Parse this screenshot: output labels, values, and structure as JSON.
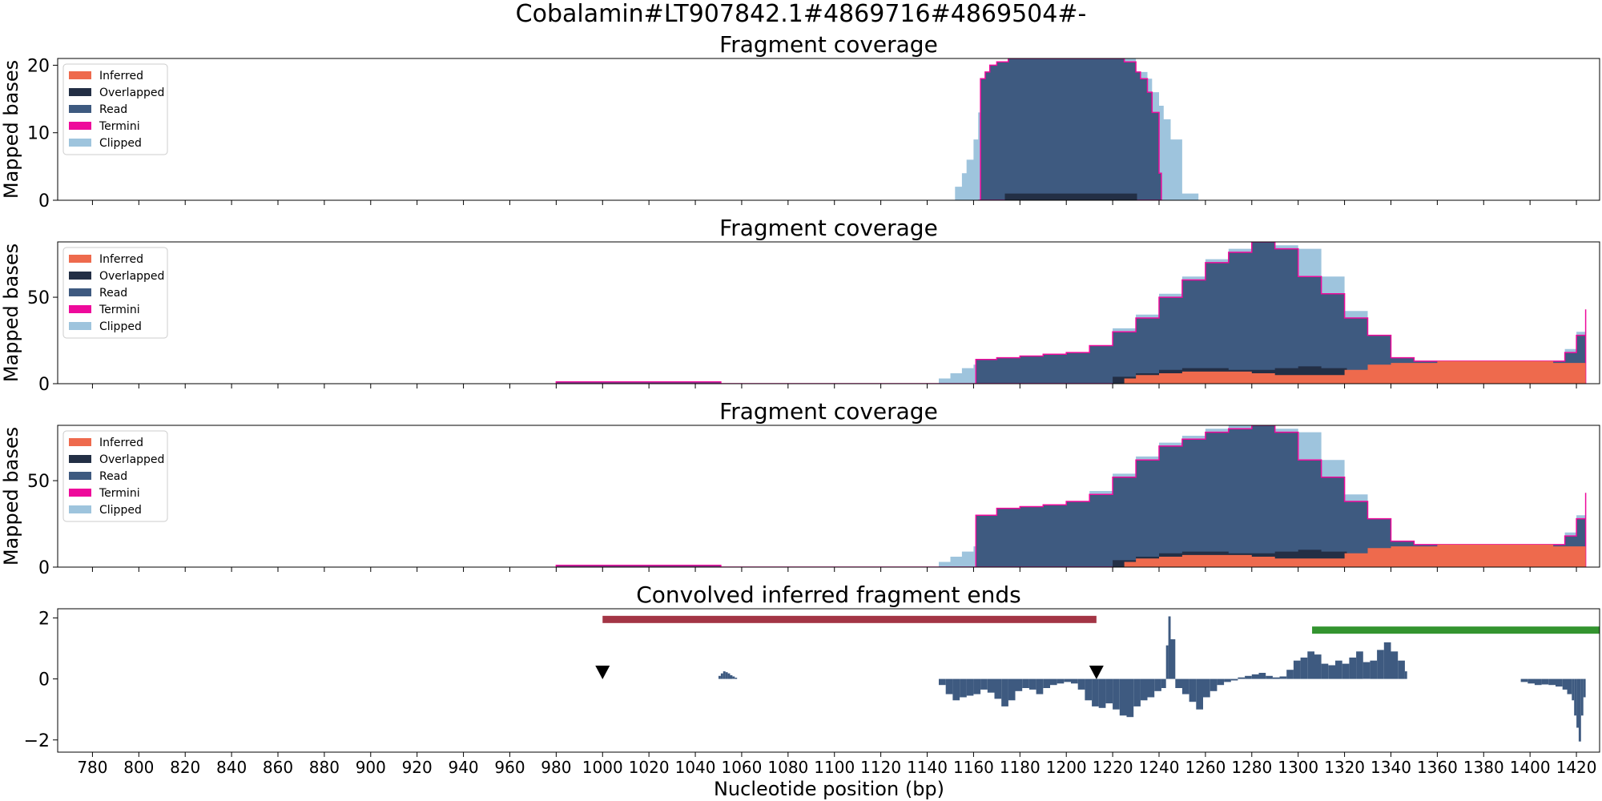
{
  "figure": {
    "suptitle": "Cobalamin#LT907842.1#4869716#4869504#-",
    "xlabel": "Nucleotide position (bp)",
    "xlim": [
      765,
      1430
    ],
    "xticks": [
      780,
      800,
      820,
      840,
      860,
      880,
      900,
      920,
      940,
      960,
      980,
      1000,
      1020,
      1040,
      1060,
      1080,
      1100,
      1120,
      1140,
      1160,
      1180,
      1200,
      1220,
      1240,
      1260,
      1280,
      1300,
      1320,
      1340,
      1360,
      1380,
      1400,
      1420
    ],
    "colors": {
      "inferred": "#ee6a4d",
      "overlapped": "#232f45",
      "read": "#3e5a80",
      "termini": "#ee0a9b",
      "clipped": "#9ec4dd",
      "bar_red": "#a33545",
      "bar_green": "#33942f",
      "marker": "#000000"
    },
    "legend_items": [
      "Inferred",
      "Overlapped",
      "Read",
      "Termini",
      "Clipped"
    ],
    "legend_keys": [
      "inferred",
      "overlapped",
      "read",
      "termini",
      "clipped"
    ]
  },
  "chart_data": [
    {
      "type": "area",
      "title": "Fragment coverage",
      "ylabel": "Mapped bases",
      "ylim": [
        0,
        21
      ],
      "yticks": [
        0,
        10,
        20
      ],
      "legend": "top-left",
      "series": [
        {
          "name": "Clipped",
          "x": [
            1150,
            1152,
            1155,
            1157,
            1160,
            1162,
            1163,
            1170,
            1172,
            1175,
            1180,
            1185,
            1190,
            1200,
            1210,
            1220,
            1230,
            1235,
            1237,
            1240,
            1242,
            1245,
            1250,
            1256,
            1257
          ],
          "values": [
            0,
            2,
            4,
            6,
            9,
            13,
            18,
            19,
            20,
            20.5,
            21,
            21,
            21,
            21,
            21,
            21,
            19,
            18,
            16,
            14,
            12,
            9,
            1,
            1,
            0
          ]
        },
        {
          "name": "Read",
          "x": [
            1162,
            1163,
            1165,
            1167,
            1170,
            1175,
            1180,
            1185,
            1190,
            1200,
            1210,
            1220,
            1225,
            1230,
            1232,
            1235,
            1237,
            1240,
            1241
          ],
          "values": [
            0,
            18,
            19,
            20,
            20.5,
            21,
            21,
            21,
            21,
            21,
            21,
            21,
            20.5,
            19,
            18,
            16,
            13,
            4,
            0
          ]
        },
        {
          "name": "Overlapped",
          "x": [
            1173,
            1173.5,
            1230,
            1230.5
          ],
          "values": [
            0,
            1,
            1,
            0
          ]
        }
      ]
    },
    {
      "type": "area",
      "title": "Fragment coverage",
      "ylabel": "Mapped bases",
      "ylim": [
        0,
        82
      ],
      "yticks": [
        0,
        50
      ],
      "legend": "top-left",
      "series": [
        {
          "name": "Clipped",
          "x": [
            970,
            980,
            1000,
            1020,
            1040,
            1050,
            1051,
            1140,
            1145,
            1150,
            1155,
            1160,
            1165,
            1170,
            1180,
            1190,
            1200,
            1210,
            1220,
            1230,
            1240,
            1250,
            1260,
            1270,
            1280,
            1290,
            1300,
            1310,
            1320,
            1330,
            1340,
            1350,
            1360,
            1370,
            1380,
            1390,
            1400,
            1410,
            1415,
            1420,
            1424
          ],
          "values": [
            0,
            1,
            1,
            1,
            1,
            1,
            0,
            0,
            3,
            6,
            9,
            11,
            12,
            14,
            15,
            17,
            18,
            22,
            32,
            40,
            52,
            62,
            72,
            78,
            81,
            80,
            78,
            62,
            42,
            24,
            13,
            13,
            13,
            13,
            13,
            13,
            13,
            13,
            20,
            30,
            43
          ]
        },
        {
          "name": "Read",
          "x": [
            980,
            1000,
            1020,
            1040,
            1050,
            1051,
            1160,
            1161,
            1170,
            1180,
            1190,
            1200,
            1210,
            1220,
            1230,
            1240,
            1250,
            1260,
            1270,
            1280,
            1290,
            1300,
            1310,
            1320,
            1330,
            1340,
            1350,
            1360,
            1370,
            1380,
            1390,
            1400,
            1410,
            1415,
            1420,
            1424
          ],
          "values": [
            1,
            1,
            1,
            1,
            1,
            0,
            0,
            14,
            15,
            16,
            17,
            18,
            22,
            30,
            38,
            50,
            60,
            70,
            76,
            82,
            78,
            62,
            52,
            38,
            28,
            15,
            13,
            13,
            13,
            13,
            13,
            13,
            13,
            18,
            28,
            43
          ]
        },
        {
          "name": "Overlapped",
          "x": [
            1220,
            1230,
            1240,
            1250,
            1260,
            1270,
            1280,
            1290,
            1300,
            1310,
            1320,
            1321
          ],
          "values": [
            4,
            6,
            8,
            9,
            9,
            8,
            8,
            9,
            10,
            9,
            9,
            0
          ]
        },
        {
          "name": "Inferred",
          "x": [
            1220,
            1225,
            1230,
            1240,
            1250,
            1260,
            1270,
            1280,
            1290,
            1300,
            1310,
            1320,
            1330,
            1340,
            1350,
            1360,
            1370,
            1380,
            1390,
            1400,
            1410,
            1420,
            1424
          ],
          "values": [
            0,
            3,
            5,
            6,
            7,
            7,
            7,
            6,
            5,
            5,
            5,
            8,
            11,
            12,
            12,
            13,
            13,
            13,
            13,
            13,
            12,
            12,
            12
          ]
        }
      ]
    },
    {
      "type": "area",
      "title": "Fragment coverage",
      "ylabel": "Mapped bases",
      "ylim": [
        0,
        82
      ],
      "yticks": [
        0,
        50
      ],
      "legend": "top-left",
      "series": [
        {
          "name": "Clipped",
          "x": [
            970,
            980,
            1000,
            1020,
            1040,
            1050,
            1051,
            1140,
            1145,
            1150,
            1155,
            1160,
            1165,
            1170,
            1180,
            1190,
            1200,
            1210,
            1220,
            1230,
            1240,
            1250,
            1260,
            1270,
            1280,
            1290,
            1300,
            1310,
            1320,
            1330,
            1340,
            1350,
            1360,
            1370,
            1380,
            1390,
            1400,
            1410,
            1415,
            1420,
            1424
          ],
          "values": [
            0,
            1,
            1,
            1,
            1,
            1,
            0,
            0,
            3,
            6,
            9,
            12,
            18,
            28,
            35,
            36,
            38,
            44,
            54,
            64,
            72,
            76,
            80,
            82,
            82,
            80,
            78,
            62,
            42,
            24,
            13,
            13,
            13,
            13,
            13,
            13,
            13,
            13,
            20,
            30,
            43
          ]
        },
        {
          "name": "Read",
          "x": [
            980,
            1000,
            1020,
            1040,
            1050,
            1051,
            1160,
            1161,
            1170,
            1180,
            1190,
            1200,
            1210,
            1220,
            1230,
            1240,
            1250,
            1260,
            1270,
            1280,
            1290,
            1300,
            1310,
            1320,
            1330,
            1340,
            1350,
            1360,
            1370,
            1380,
            1390,
            1400,
            1410,
            1415,
            1420,
            1424
          ],
          "values": [
            1,
            1,
            1,
            1,
            1,
            0,
            0,
            30,
            34,
            35,
            36,
            38,
            42,
            52,
            62,
            70,
            74,
            78,
            80,
            82,
            78,
            62,
            52,
            38,
            28,
            15,
            13,
            13,
            13,
            13,
            13,
            13,
            13,
            18,
            28,
            43
          ]
        },
        {
          "name": "Overlapped",
          "x": [
            1220,
            1230,
            1240,
            1250,
            1260,
            1270,
            1280,
            1290,
            1300,
            1310,
            1320,
            1321
          ],
          "values": [
            4,
            6,
            8,
            9,
            9,
            8,
            8,
            9,
            10,
            9,
            9,
            0
          ]
        },
        {
          "name": "Inferred",
          "x": [
            1220,
            1225,
            1230,
            1240,
            1250,
            1260,
            1270,
            1280,
            1290,
            1300,
            1310,
            1320,
            1330,
            1340,
            1350,
            1360,
            1370,
            1380,
            1390,
            1400,
            1410,
            1420,
            1424
          ],
          "values": [
            0,
            3,
            5,
            6,
            7,
            7,
            7,
            6,
            5,
            5,
            5,
            8,
            11,
            12,
            12,
            13,
            13,
            13,
            13,
            13,
            12,
            12,
            12
          ]
        }
      ]
    },
    {
      "type": "bar",
      "title": "Convolved inferred fragment ends",
      "ylim": [
        -2.4,
        2.3
      ],
      "yticks": [
        -2,
        0,
        2
      ],
      "series": [
        {
          "name": "",
          "x": [
            1050,
            1051,
            1052,
            1053,
            1054,
            1055,
            1056,
            1057
          ],
          "values": [
            0.1,
            0.18,
            0.25,
            0.22,
            0.18,
            0.12,
            0.08,
            0.04
          ]
        },
        {
          "name": "",
          "x": [
            1145,
            1148,
            1151,
            1154,
            1157,
            1160,
            1163,
            1166,
            1169,
            1172,
            1175,
            1178,
            1181,
            1184,
            1187,
            1190,
            1193,
            1196,
            1199,
            1202,
            1205,
            1208,
            1211,
            1214,
            1217,
            1220,
            1223,
            1226,
            1229,
            1232,
            1235,
            1238,
            1241,
            1243,
            1244,
            1245,
            1247,
            1250,
            1253,
            1256,
            1259,
            1262,
            1265,
            1268,
            1271,
            1274,
            1277,
            1280,
            1283,
            1286,
            1289,
            1292,
            1295,
            1298,
            1301,
            1304,
            1307,
            1310,
            1313,
            1316,
            1319,
            1322,
            1325,
            1328,
            1331,
            1334,
            1337,
            1340,
            1343,
            1346
          ],
          "values": [
            -0.2,
            -0.5,
            -0.7,
            -0.6,
            -0.55,
            -0.5,
            -0.35,
            -0.45,
            -0.65,
            -0.9,
            -0.7,
            -0.4,
            -0.3,
            -0.35,
            -0.5,
            -0.3,
            -0.2,
            -0.15,
            -0.1,
            -0.15,
            -0.35,
            -0.7,
            -0.9,
            -0.95,
            -0.8,
            -1.0,
            -1.2,
            -1.25,
            -0.9,
            -0.7,
            -0.6,
            -0.4,
            -0.3,
            1.1,
            2.05,
            1.3,
            -0.3,
            -0.5,
            -0.75,
            -1.0,
            -0.6,
            -0.4,
            -0.2,
            -0.1,
            -0.05,
            0.05,
            0.1,
            0.15,
            0.2,
            0.1,
            0.05,
            0.08,
            0.3,
            0.6,
            0.7,
            0.9,
            0.8,
            0.5,
            0.45,
            0.6,
            0.5,
            0.7,
            0.9,
            0.55,
            0.6,
            0.95,
            1.2,
            0.9,
            0.6,
            0.25
          ]
        },
        {
          "name": "",
          "x": [
            1396,
            1399,
            1402,
            1405,
            1408,
            1411,
            1414,
            1416,
            1418,
            1419,
            1420,
            1421,
            1422,
            1423
          ],
          "values": [
            -0.1,
            -0.15,
            -0.2,
            -0.18,
            -0.2,
            -0.25,
            -0.35,
            -0.5,
            -0.7,
            -1.2,
            -1.6,
            -2.05,
            -1.2,
            -0.6
          ]
        }
      ],
      "bands": [
        {
          "color_key": "bar_red",
          "x": [
            1000,
            1213
          ],
          "y": 1.95
        },
        {
          "color_key": "bar_green",
          "x": [
            1306,
            1430
          ],
          "y": 1.6
        }
      ],
      "markers": [
        {
          "x": 1000,
          "y": 0.2
        },
        {
          "x": 1213,
          "y": 0.2
        }
      ]
    }
  ]
}
